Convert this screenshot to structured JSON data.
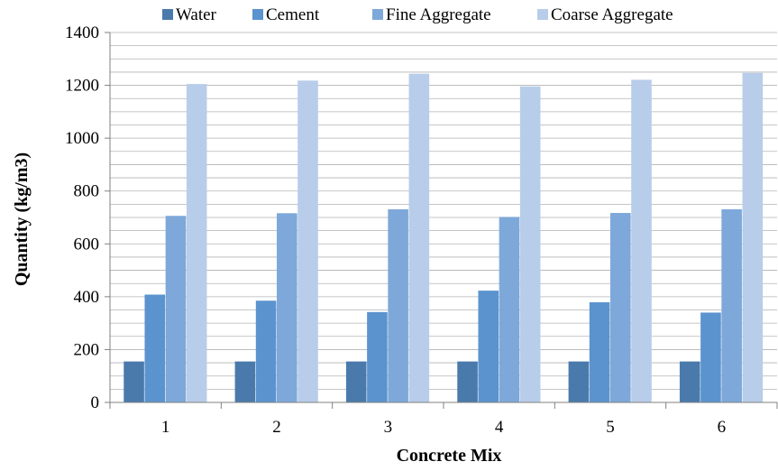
{
  "chart_data": {
    "type": "bar",
    "title": "",
    "xlabel": "Concrete Mix",
    "ylabel": "Quantity (kg/m3)",
    "ylim": [
      0,
      1400
    ],
    "yticks": [
      0,
      200,
      400,
      600,
      800,
      1000,
      1200,
      1400
    ],
    "ytick_labels": [
      "0",
      "200",
      "400",
      "600",
      "800",
      "1000",
      "1200",
      "1400"
    ],
    "minor_grid_step": 50,
    "grid": true,
    "legend_position": "top",
    "categories": [
      "1",
      "2",
      "3",
      "4",
      "5",
      "6"
    ],
    "series": [
      {
        "name": "Water",
        "color": "#4a7aab",
        "values": [
          155,
          155,
          155,
          155,
          155,
          155
        ]
      },
      {
        "name": "Cement",
        "color": "#5b93cf",
        "values": [
          408,
          385,
          342,
          423,
          379,
          340
        ]
      },
      {
        "name": "Fine Aggregate",
        "color": "#7ea8d9",
        "values": [
          706,
          716,
          731,
          702,
          717,
          731
        ]
      },
      {
        "name": "Coarse Aggregate",
        "color": "#b8cde9",
        "values": [
          1205,
          1218,
          1244,
          1196,
          1221,
          1247
        ]
      }
    ]
  }
}
